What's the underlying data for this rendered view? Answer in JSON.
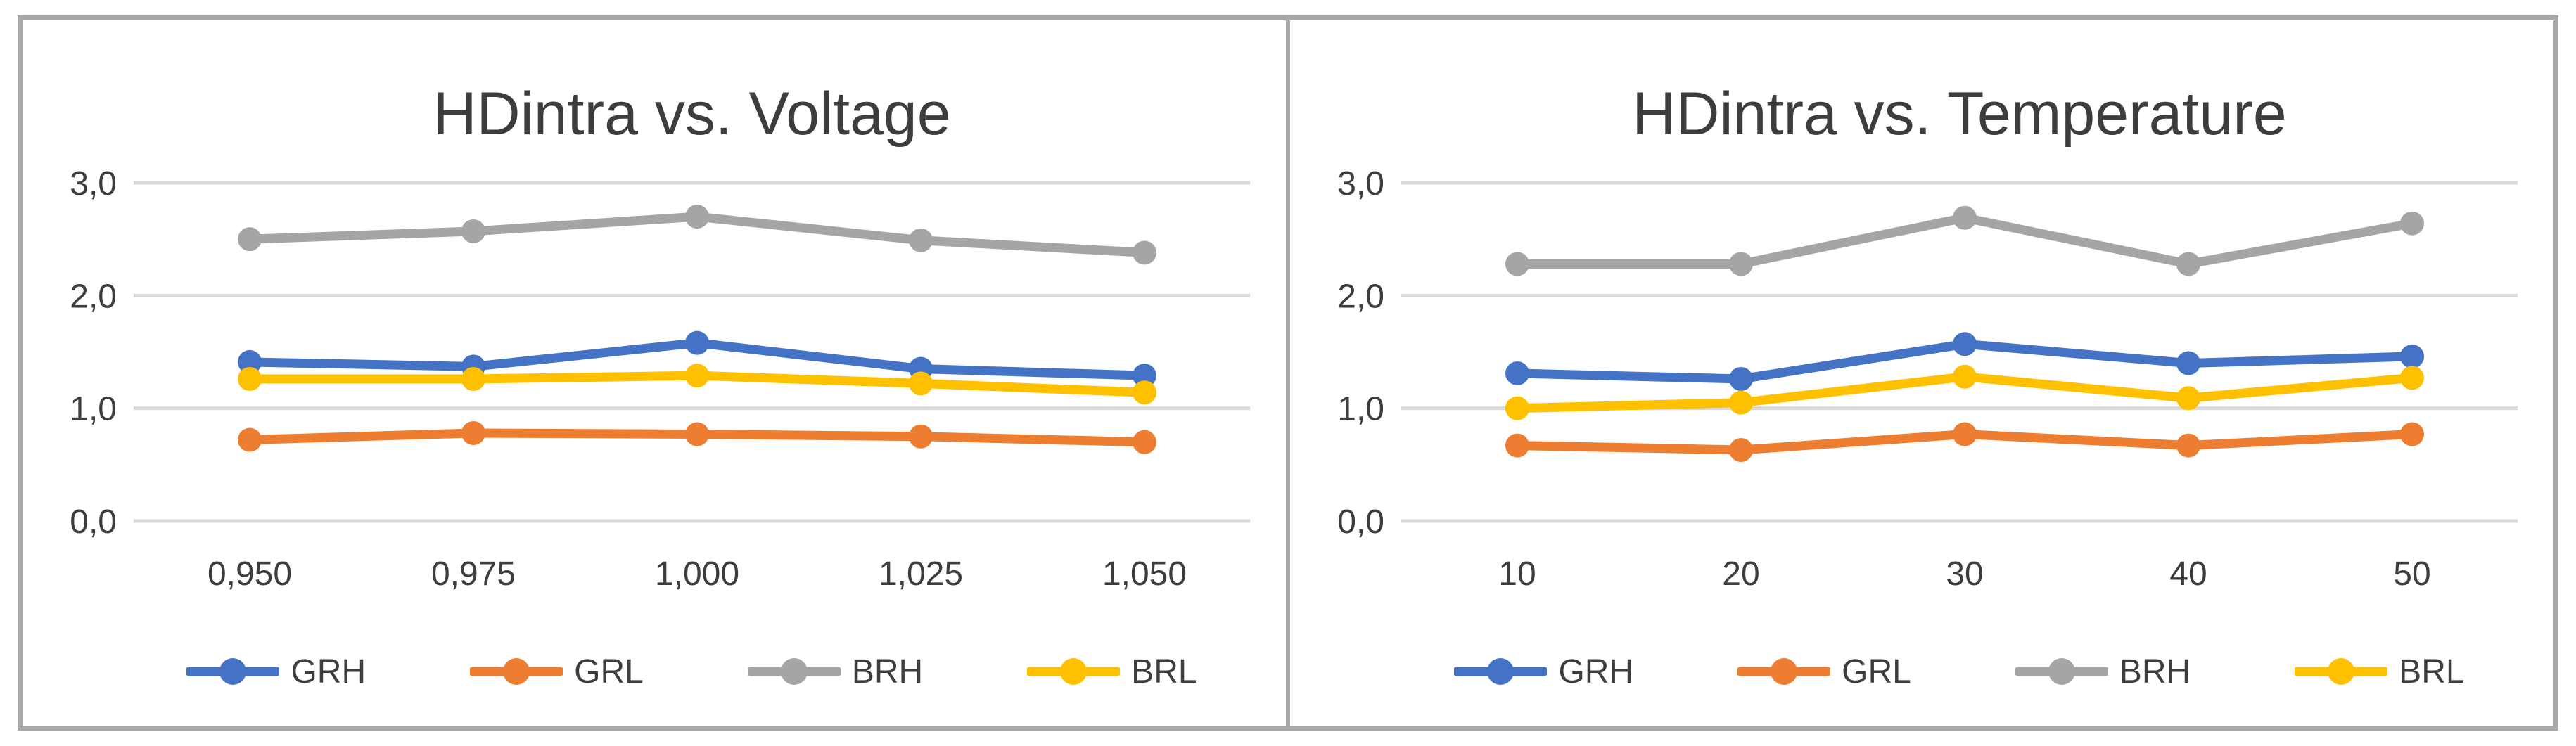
{
  "frame_border_color": "#a7a7a7",
  "gridline_color": "#d9d9d9",
  "text_color": "#3d3d3d",
  "chart_data": [
    {
      "type": "line",
      "title": "HDintra vs. Voltage",
      "xlabel": "",
      "ylabel": "",
      "ylim": [
        0,
        3
      ],
      "grid": true,
      "legend_position": "bottom",
      "x_labels": [
        "0,950",
        "0,975",
        "1,000",
        "1,025",
        "1,050"
      ],
      "y_ticks": [
        {
          "label": "0,0",
          "value": 0
        },
        {
          "label": "1,0",
          "value": 1
        },
        {
          "label": "2,0",
          "value": 2
        },
        {
          "label": "3,0",
          "value": 3
        }
      ],
      "series": [
        {
          "name": "GRH",
          "color": "#4472C4",
          "values": [
            1.41,
            1.37,
            1.58,
            1.35,
            1.29
          ]
        },
        {
          "name": "GRL",
          "color": "#ED7D31",
          "values": [
            0.72,
            0.78,
            0.77,
            0.75,
            0.7
          ]
        },
        {
          "name": "BRH",
          "color": "#A5A5A5",
          "values": [
            2.5,
            2.57,
            2.7,
            2.49,
            2.38
          ]
        },
        {
          "name": "BRL",
          "color": "#FFC000",
          "values": [
            1.26,
            1.26,
            1.29,
            1.22,
            1.14
          ]
        }
      ]
    },
    {
      "type": "line",
      "title": "HDintra vs. Temperature",
      "xlabel": "",
      "ylabel": "",
      "ylim": [
        0,
        3
      ],
      "grid": true,
      "legend_position": "bottom",
      "x_labels": [
        "10",
        "20",
        "30",
        "40",
        "50"
      ],
      "y_ticks": [
        {
          "label": "0,0",
          "value": 0
        },
        {
          "label": "1,0",
          "value": 1
        },
        {
          "label": "2,0",
          "value": 2
        },
        {
          "label": "3,0",
          "value": 3
        }
      ],
      "series": [
        {
          "name": "GRH",
          "color": "#4472C4",
          "values": [
            1.31,
            1.26,
            1.57,
            1.4,
            1.46
          ]
        },
        {
          "name": "GRL",
          "color": "#ED7D31",
          "values": [
            0.67,
            0.63,
            0.77,
            0.67,
            0.77
          ]
        },
        {
          "name": "BRH",
          "color": "#A5A5A5",
          "values": [
            2.28,
            2.28,
            2.69,
            2.28,
            2.64
          ]
        },
        {
          "name": "BRL",
          "color": "#FFC000",
          "values": [
            1.0,
            1.05,
            1.28,
            1.09,
            1.27
          ]
        }
      ]
    }
  ]
}
